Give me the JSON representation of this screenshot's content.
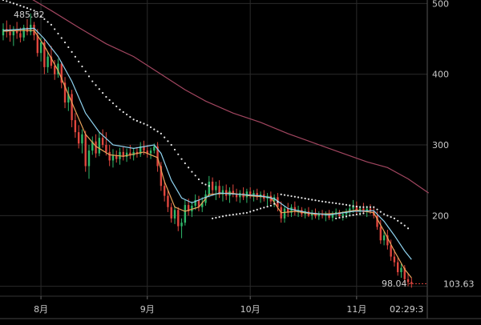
{
  "chart_data": {
    "type": "candlestick",
    "y_axis": {
      "ticks": [
        500,
        400,
        300,
        200
      ],
      "range": [
        86,
        505
      ],
      "position": "right"
    },
    "x_axis": {
      "ticks": [
        "8月",
        "9月",
        "10月",
        "11月"
      ],
      "range": [
        "07-21",
        "11-28"
      ]
    },
    "grid": true,
    "annotations": {
      "high": "485.62",
      "low": "98.04",
      "last_price": "103.63",
      "time": "02:29:3"
    },
    "colors": {
      "up": "#2fb86a",
      "down": "#e0463e",
      "ma_fast": "#e8a35a",
      "ma_mid": "#8fd3f0",
      "ma_slow": "#a24660",
      "dots": "#e6e6e6",
      "grid": "#2a2a2a"
    },
    "candles": [
      [
        "07-21",
        455,
        472,
        448,
        464
      ],
      [
        "07-22",
        464,
        476,
        452,
        460
      ],
      [
        "07-23",
        460,
        470,
        446,
        455
      ],
      [
        "07-24",
        455,
        468,
        440,
        462
      ],
      [
        "07-25",
        462,
        474,
        450,
        458
      ],
      [
        "07-26",
        458,
        466,
        445,
        452
      ],
      [
        "07-27",
        452,
        470,
        447,
        466
      ],
      [
        "07-28",
        466,
        478,
        455,
        460
      ],
      [
        "07-29",
        460,
        486,
        455,
        470
      ],
      [
        "07-30",
        470,
        474,
        448,
        455
      ],
      [
        "07-31",
        455,
        464,
        425,
        430
      ],
      [
        "08-01",
        430,
        452,
        418,
        445
      ],
      [
        "08-02",
        445,
        450,
        400,
        410
      ],
      [
        "08-03",
        410,
        432,
        402,
        425
      ],
      [
        "08-04",
        425,
        440,
        408,
        412
      ],
      [
        "08-05",
        412,
        420,
        392,
        400
      ],
      [
        "08-06",
        400,
        422,
        395,
        415
      ],
      [
        "08-07",
        415,
        418,
        380,
        388
      ],
      [
        "08-08",
        388,
        396,
        352,
        360
      ],
      [
        "08-09",
        360,
        382,
        348,
        372
      ],
      [
        "08-10",
        372,
        378,
        325,
        335
      ],
      [
        "08-11",
        335,
        345,
        310,
        318
      ],
      [
        "08-12",
        318,
        328,
        295,
        302
      ],
      [
        "08-13",
        302,
        322,
        288,
        315
      ],
      [
        "08-14",
        315,
        320,
        262,
        270
      ],
      [
        "08-15",
        270,
        300,
        252,
        292
      ],
      [
        "08-16",
        292,
        312,
        286,
        305
      ],
      [
        "08-17",
        305,
        315,
        282,
        288
      ],
      [
        "08-18",
        288,
        318,
        284,
        310
      ],
      [
        "08-19",
        310,
        322,
        296,
        300
      ],
      [
        "08-20",
        300,
        318,
        285,
        290
      ],
      [
        "08-21",
        290,
        300,
        270,
        278
      ],
      [
        "08-22",
        278,
        294,
        268,
        285
      ],
      [
        "08-23",
        285,
        292,
        275,
        280
      ],
      [
        "08-24",
        280,
        296,
        272,
        290
      ],
      [
        "08-25",
        290,
        298,
        278,
        283
      ],
      [
        "08-26",
        283,
        295,
        276,
        289
      ],
      [
        "08-27",
        289,
        300,
        280,
        285
      ],
      [
        "08-28",
        285,
        296,
        278,
        290
      ],
      [
        "08-29",
        290,
        297,
        282,
        287
      ],
      [
        "08-30",
        287,
        304,
        283,
        298
      ],
      [
        "08-31",
        298,
        306,
        286,
        292
      ],
      [
        "09-01",
        292,
        300,
        282,
        288
      ],
      [
        "09-02",
        288,
        296,
        280,
        292
      ],
      [
        "09-03",
        292,
        302,
        288,
        298
      ],
      [
        "09-04",
        298,
        304,
        262,
        270
      ],
      [
        "09-05",
        270,
        276,
        235,
        242
      ],
      [
        "09-06",
        242,
        250,
        220,
        228
      ],
      [
        "09-07",
        228,
        236,
        205,
        212
      ],
      [
        "09-08",
        212,
        218,
        190,
        196
      ],
      [
        "09-09",
        196,
        214,
        188,
        208
      ],
      [
        "09-10",
        208,
        212,
        178,
        185
      ],
      [
        "09-11",
        185,
        196,
        168,
        190
      ],
      [
        "09-12",
        190,
        222,
        186,
        215
      ],
      [
        "09-13",
        215,
        224,
        200,
        206
      ],
      [
        "09-14",
        206,
        220,
        198,
        214
      ],
      [
        "09-15",
        214,
        230,
        208,
        222
      ],
      [
        "09-16",
        222,
        228,
        206,
        212
      ],
      [
        "09-17",
        212,
        226,
        205,
        218
      ],
      [
        "09-18",
        218,
        236,
        214,
        230
      ],
      [
        "09-19",
        230,
        256,
        226,
        248
      ],
      [
        "09-20",
        248,
        254,
        228,
        236
      ],
      [
        "09-21",
        236,
        248,
        222,
        242
      ],
      [
        "09-22",
        242,
        250,
        225,
        230
      ],
      [
        "09-23",
        230,
        242,
        220,
        236
      ],
      [
        "09-24",
        236,
        244,
        222,
        228
      ],
      [
        "09-25",
        228,
        240,
        218,
        235
      ],
      [
        "09-26",
        235,
        244,
        226,
        230
      ],
      [
        "09-27",
        230,
        238,
        220,
        226
      ],
      [
        "09-28",
        226,
        236,
        218,
        232
      ],
      [
        "09-29",
        232,
        240,
        222,
        226
      ],
      [
        "09-30",
        226,
        238,
        218,
        234
      ],
      [
        "10-01",
        234,
        240,
        224,
        228
      ],
      [
        "10-02",
        228,
        236,
        220,
        232
      ],
      [
        "10-03",
        232,
        238,
        222,
        226
      ],
      [
        "10-04",
        226,
        234,
        218,
        230
      ],
      [
        "10-05",
        230,
        236,
        220,
        224
      ],
      [
        "10-06",
        224,
        232,
        214,
        228
      ],
      [
        "10-07",
        228,
        234,
        216,
        220
      ],
      [
        "10-08",
        220,
        230,
        212,
        226
      ],
      [
        "10-09",
        226,
        232,
        206,
        212
      ],
      [
        "10-10",
        212,
        220,
        190,
        196
      ],
      [
        "10-11",
        196,
        214,
        190,
        210
      ],
      [
        "10-12",
        210,
        218,
        198,
        204
      ],
      [
        "10-13",
        204,
        216,
        198,
        212
      ],
      [
        "10-14",
        212,
        220,
        200,
        206
      ],
      [
        "10-15",
        206,
        214,
        198,
        208
      ],
      [
        "10-16",
        208,
        212,
        198,
        202
      ],
      [
        "10-17",
        202,
        210,
        196,
        206
      ],
      [
        "10-18",
        206,
        212,
        198,
        200
      ],
      [
        "10-19",
        200,
        208,
        194,
        204
      ],
      [
        "10-20",
        204,
        210,
        196,
        199
      ],
      [
        "10-21",
        199,
        206,
        194,
        203
      ],
      [
        "10-22",
        203,
        208,
        196,
        200
      ],
      [
        "10-23",
        200,
        206,
        192,
        202
      ],
      [
        "10-24",
        202,
        208,
        194,
        197
      ],
      [
        "10-25",
        197,
        206,
        192,
        203
      ],
      [
        "10-26",
        203,
        210,
        198,
        205
      ],
      [
        "10-27",
        205,
        208,
        196,
        199
      ],
      [
        "10-28",
        199,
        206,
        193,
        202
      ],
      [
        "10-29",
        202,
        210,
        196,
        206
      ],
      [
        "10-30",
        206,
        216,
        200,
        210
      ],
      [
        "10-31",
        210,
        222,
        204,
        214
      ],
      [
        "11-01",
        214,
        220,
        202,
        206
      ],
      [
        "11-02",
        206,
        214,
        200,
        210
      ],
      [
        "11-03",
        210,
        218,
        202,
        205
      ],
      [
        "11-04",
        205,
        214,
        198,
        210
      ],
      [
        "11-05",
        210,
        216,
        202,
        206
      ],
      [
        "11-06",
        206,
        212,
        196,
        200
      ],
      [
        "11-07",
        200,
        206,
        180,
        184
      ],
      [
        "11-08",
        184,
        194,
        160,
        165
      ],
      [
        "11-09",
        165,
        178,
        158,
        172
      ],
      [
        "11-10",
        172,
        180,
        152,
        158
      ],
      [
        "11-11",
        158,
        166,
        136,
        142
      ],
      [
        "11-12",
        142,
        152,
        128,
        134
      ],
      [
        "11-13",
        134,
        140,
        115,
        120
      ],
      [
        "11-14",
        120,
        132,
        112,
        126
      ],
      [
        "11-15",
        126,
        130,
        104,
        110
      ],
      [
        "11-16",
        110,
        118,
        100,
        106
      ],
      [
        "11-17",
        106,
        112,
        98,
        103.63
      ]
    ],
    "series": [
      {
        "role": "ma_fast",
        "style": "line",
        "points": [
          [
            "07-21",
            461
          ],
          [
            "07-27",
            462
          ],
          [
            "07-30",
            462
          ],
          [
            "08-02",
            440
          ],
          [
            "08-06",
            405
          ],
          [
            "08-10",
            360
          ],
          [
            "08-14",
            315
          ],
          [
            "08-17",
            298
          ],
          [
            "08-21",
            286
          ],
          [
            "08-25",
            284
          ],
          [
            "08-31",
            290
          ],
          [
            "09-04",
            282
          ],
          [
            "09-06",
            248
          ],
          [
            "09-09",
            212
          ],
          [
            "09-12",
            206
          ],
          [
            "09-16",
            212
          ],
          [
            "09-19",
            230
          ],
          [
            "09-25",
            232
          ],
          [
            "10-01",
            228
          ],
          [
            "10-07",
            226
          ],
          [
            "10-10",
            204
          ],
          [
            "10-14",
            206
          ],
          [
            "10-20",
            202
          ],
          [
            "10-26",
            203
          ],
          [
            "11-01",
            208
          ],
          [
            "11-06",
            204
          ],
          [
            "11-09",
            178
          ],
          [
            "11-12",
            150
          ],
          [
            "11-15",
            124
          ],
          [
            "11-17",
            112
          ]
        ]
      },
      {
        "role": "ma_mid",
        "style": "line",
        "points": [
          [
            "07-21",
            462
          ],
          [
            "07-30",
            465
          ],
          [
            "08-02",
            450
          ],
          [
            "08-06",
            425
          ],
          [
            "08-10",
            390
          ],
          [
            "08-14",
            345
          ],
          [
            "08-18",
            318
          ],
          [
            "08-22",
            300
          ],
          [
            "08-28",
            295
          ],
          [
            "09-03",
            300
          ],
          [
            "09-05",
            288
          ],
          [
            "09-08",
            250
          ],
          [
            "09-11",
            225
          ],
          [
            "09-14",
            218
          ],
          [
            "09-18",
            226
          ],
          [
            "09-22",
            232
          ],
          [
            "09-28",
            230
          ],
          [
            "10-04",
            228
          ],
          [
            "10-08",
            224
          ],
          [
            "10-12",
            210
          ],
          [
            "10-18",
            204
          ],
          [
            "10-24",
            201
          ],
          [
            "10-31",
            206
          ],
          [
            "11-06",
            207
          ],
          [
            "11-09",
            192
          ],
          [
            "11-12",
            172
          ],
          [
            "11-15",
            150
          ],
          [
            "11-17",
            138
          ]
        ]
      },
      {
        "role": "ma_slow",
        "style": "line",
        "points": [
          [
            "07-28",
            510
          ],
          [
            "08-04",
            490
          ],
          [
            "08-12",
            466
          ],
          [
            "08-20",
            443
          ],
          [
            "08-28",
            425
          ],
          [
            "09-05",
            400
          ],
          [
            "09-12",
            378
          ],
          [
            "09-18",
            362
          ],
          [
            "09-26",
            345
          ],
          [
            "10-04",
            332
          ],
          [
            "10-12",
            316
          ],
          [
            "10-20",
            302
          ],
          [
            "10-28",
            288
          ],
          [
            "11-04",
            276
          ],
          [
            "11-10",
            268
          ],
          [
            "11-16",
            252
          ],
          [
            "11-22",
            232
          ]
        ]
      },
      {
        "role": "dots_upper",
        "style": "dots",
        "points": [
          [
            "07-21",
            505
          ],
          [
            "07-26",
            497
          ],
          [
            "07-30",
            490
          ],
          [
            "08-04",
            470
          ],
          [
            "08-08",
            445
          ],
          [
            "08-12",
            418
          ],
          [
            "08-16",
            390
          ],
          [
            "08-20",
            368
          ],
          [
            "08-24",
            350
          ],
          [
            "08-28",
            336
          ],
          [
            "09-01",
            328
          ],
          [
            "09-05",
            316
          ],
          [
            "09-08",
            300
          ],
          [
            "09-11",
            280
          ],
          [
            "09-14",
            262
          ],
          [
            "09-17",
            246
          ],
          [
            "09-20",
            240
          ]
        ]
      },
      {
        "role": "dots_lower",
        "style": "dots",
        "points": [
          [
            "09-20",
            196
          ],
          [
            "09-24",
            200
          ],
          [
            "09-30",
            204
          ],
          [
            "10-04",
            210
          ],
          [
            "10-07",
            214
          ],
          [
            "10-10",
            222
          ]
        ]
      },
      {
        "role": "dots_upper2",
        "style": "dots",
        "points": [
          [
            "10-10",
            230
          ],
          [
            "10-16",
            225
          ],
          [
            "10-22",
            220
          ],
          [
            "10-28",
            216
          ],
          [
            "11-02",
            212
          ],
          [
            "11-06",
            212
          ],
          [
            "11-09",
            202
          ],
          [
            "11-12",
            196
          ],
          [
            "11-15",
            186
          ],
          [
            "11-17",
            178
          ]
        ]
      },
      {
        "role": "dots_lower2",
        "style": "dots",
        "points": [
          [
            "10-26",
            196
          ],
          [
            "10-30",
            200
          ],
          [
            "11-04",
            204
          ]
        ]
      }
    ]
  }
}
